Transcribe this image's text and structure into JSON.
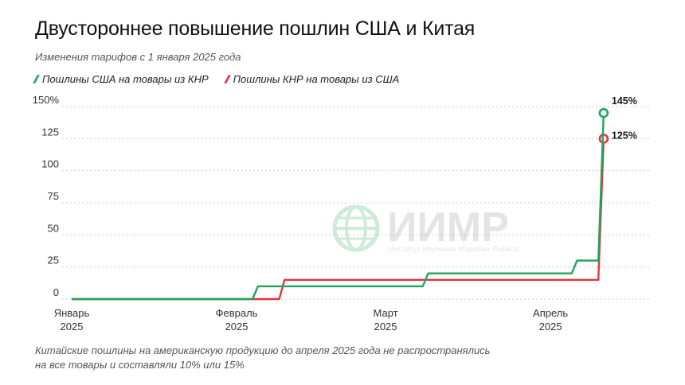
{
  "header": {
    "title": "Двустороннее повышение пошлин США и Китая",
    "subtitle": "Изменения тарифов с 1 января 2025 года"
  },
  "watermark": {
    "name": "ИИМР",
    "tagline": "Институт Изучения Мировых Рынков",
    "icon": "globe-icon"
  },
  "footnote": {
    "line1": "Китайские пошлины на американскую продукцию до апреля 2025 года не распространялись",
    "line2": "на все товары и составляли 10% или 15%"
  },
  "colors": {
    "us": "#1fa55a",
    "cn": "#e8323c",
    "grid": "#c9c9c9",
    "watermark": "#1fa55a"
  },
  "chart_data": {
    "type": "line",
    "step": true,
    "ylim": [
      0,
      150
    ],
    "yticks": [
      0,
      25,
      50,
      75,
      100,
      125,
      150
    ],
    "ytick_labels": [
      "0",
      "25",
      "50",
      "75",
      "100",
      "125",
      "150%"
    ],
    "xlim": [
      1,
      110
    ],
    "xticks": [
      {
        "x": 1,
        "label": [
          "Январь",
          "2025"
        ]
      },
      {
        "x": 32,
        "label": [
          "Февраль",
          "2025"
        ]
      },
      {
        "x": 60,
        "label": [
          "Март",
          "2025"
        ]
      },
      {
        "x": 91,
        "label": [
          "Апрель",
          "2025"
        ]
      }
    ],
    "grid": true,
    "legend": "top-left",
    "series": [
      {
        "name": "Пошлины США на товары из КНР",
        "color": "#1fa55a",
        "points": [
          [
            1,
            0
          ],
          [
            35,
            0
          ],
          [
            36,
            10
          ],
          [
            67,
            10
          ],
          [
            68,
            20
          ],
          [
            95,
            20
          ],
          [
            96,
            30
          ],
          [
            100,
            30
          ],
          [
            101,
            145
          ]
        ],
        "end_label": "145%"
      },
      {
        "name": "Пошлины КНР на товары из США",
        "color": "#e8323c",
        "points": [
          [
            1,
            0
          ],
          [
            40,
            0
          ],
          [
            41,
            15
          ],
          [
            66,
            15
          ],
          [
            67,
            15
          ],
          [
            100,
            15
          ],
          [
            101,
            125
          ]
        ],
        "end_label": "125%"
      }
    ]
  }
}
